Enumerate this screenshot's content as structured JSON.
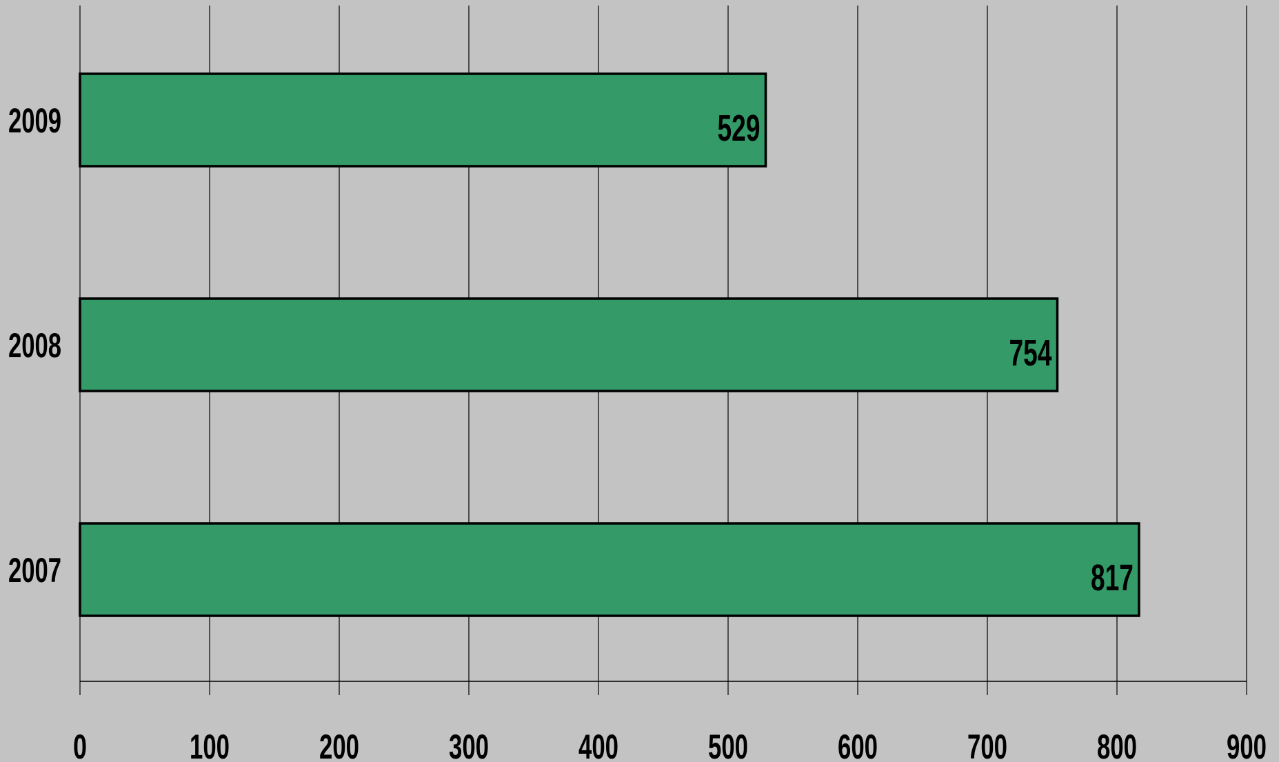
{
  "chart_data": {
    "type": "bar",
    "orientation": "horizontal",
    "categories": [
      "2007",
      "2008",
      "2009"
    ],
    "values": [
      817,
      754,
      529
    ],
    "data_labels": [
      "817",
      "754",
      "529"
    ],
    "title": "",
    "xlabel": "",
    "ylabel": "",
    "xlim": [
      0,
      900
    ],
    "x_ticks": [
      0,
      100,
      200,
      300,
      400,
      500,
      600,
      700,
      800,
      900
    ],
    "x_tick_labels": [
      "0",
      "100",
      "200",
      "300",
      "400",
      "500",
      "600",
      "700",
      "800",
      "900"
    ],
    "grid": "vertical",
    "legend": "none",
    "colors": {
      "background": "#c3c3c3",
      "bar_fill": "#339a68",
      "bar_stroke": "#000000",
      "grid": "#000000"
    }
  }
}
